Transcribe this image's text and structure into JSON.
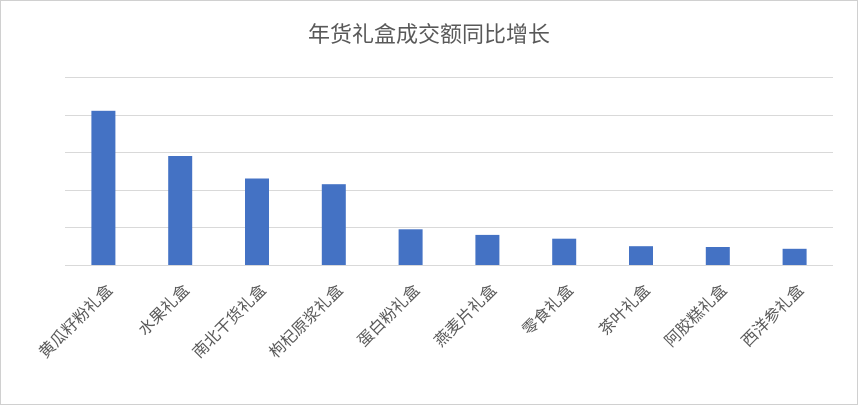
{
  "chart_data": {
    "type": "bar",
    "title": "年货礼盒成交额同比增长",
    "categories": [
      "黄瓜籽粉礼盒",
      "水果礼盒",
      "南北干货礼盒",
      "枸杞原浆礼盒",
      "蛋白粉礼盒",
      "燕麦片礼盒",
      "零食礼盒",
      "茶叶礼盒",
      "阿胶糕礼盒",
      "西洋参礼盒"
    ],
    "values": [
      4.1,
      2.9,
      2.3,
      2.15,
      0.95,
      0.8,
      0.7,
      0.5,
      0.48,
      0.43
    ],
    "ylim": [
      0,
      5
    ],
    "grid": true,
    "legend": "none",
    "bar_color": "#4472C4",
    "grid_color": "#D9D9D9"
  }
}
